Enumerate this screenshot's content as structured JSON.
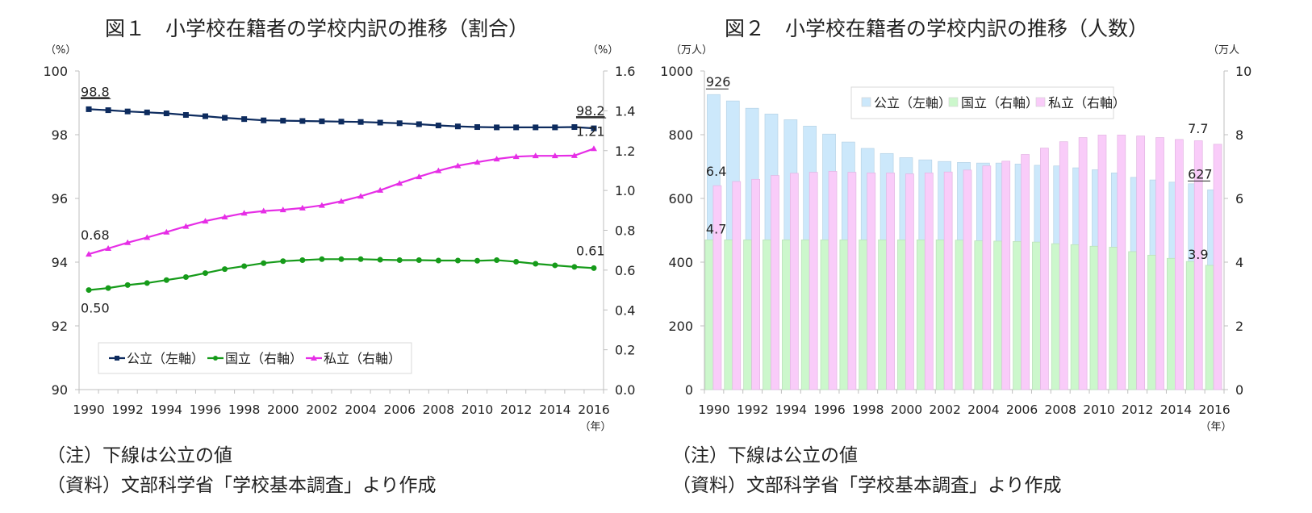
{
  "chart_data": [
    {
      "type": "line",
      "title": "図１　小学校在籍者の学校内訳の推移（割合）",
      "xlabel": "（年）",
      "ylabel": "（%）",
      "y2label": "（%）",
      "ylim": [
        90,
        100
      ],
      "y2lim": [
        0.0,
        1.6
      ],
      "yticks": [
        "90",
        "92",
        "94",
        "96",
        "98",
        "100"
      ],
      "y2ticks": [
        "0.0",
        "0.2",
        "0.4",
        "0.6",
        "0.8",
        "1.0",
        "1.2",
        "1.4",
        "1.6"
      ],
      "x": [
        1990,
        1991,
        1992,
        1993,
        1994,
        1995,
        1996,
        1997,
        1998,
        1999,
        2000,
        2001,
        2002,
        2003,
        2004,
        2005,
        2006,
        2007,
        2008,
        2009,
        2010,
        2011,
        2012,
        2013,
        2014,
        2015,
        2016
      ],
      "xticks": [
        "1990",
        "1992",
        "1994",
        "1996",
        "1998",
        "2000",
        "2002",
        "2004",
        "2006",
        "2008",
        "2010",
        "2012",
        "2014",
        "2016"
      ],
      "grid": false,
      "legend_position": "bottom-left",
      "series": [
        {
          "name": "公立（左軸）",
          "axis": "left",
          "color": "#0d2b5e",
          "marker": "square",
          "values": [
            98.8,
            98.77,
            98.73,
            98.7,
            98.67,
            98.62,
            98.58,
            98.53,
            98.49,
            98.45,
            98.44,
            98.43,
            98.42,
            98.41,
            98.4,
            98.38,
            98.36,
            98.33,
            98.29,
            98.26,
            98.24,
            98.23,
            98.23,
            98.23,
            98.23,
            98.24,
            98.2
          ]
        },
        {
          "name": "国立（右軸）",
          "axis": "right",
          "color": "#169b1a",
          "marker": "circle",
          "values": [
            0.5,
            0.51,
            0.525,
            0.535,
            0.55,
            0.565,
            0.585,
            0.605,
            0.62,
            0.635,
            0.645,
            0.65,
            0.655,
            0.655,
            0.655,
            0.652,
            0.65,
            0.65,
            0.648,
            0.648,
            0.647,
            0.65,
            0.642,
            0.632,
            0.624,
            0.616,
            0.61
          ]
        },
        {
          "name": "私立（右軸）",
          "axis": "right",
          "color": "#e62ee6",
          "marker": "triangle",
          "values": [
            0.68,
            0.709,
            0.738,
            0.764,
            0.791,
            0.82,
            0.846,
            0.867,
            0.886,
            0.897,
            0.903,
            0.912,
            0.925,
            0.946,
            0.971,
            1.001,
            1.036,
            1.069,
            1.099,
            1.124,
            1.142,
            1.158,
            1.17,
            1.174,
            1.174,
            1.175,
            1.21
          ]
        }
      ],
      "annotations": [
        {
          "series": 0,
          "index": 0,
          "text": "98.8",
          "underline": true
        },
        {
          "series": 0,
          "index": 26,
          "text": "98.2",
          "underline": true
        },
        {
          "series": 2,
          "index": 0,
          "text": "0.68"
        },
        {
          "series": 2,
          "index": 26,
          "text": "1.21"
        },
        {
          "series": 1,
          "index": 0,
          "text": "0.50"
        },
        {
          "series": 1,
          "index": 26,
          "text": "0.61"
        }
      ]
    },
    {
      "type": "bar",
      "title": "図２　小学校在籍者の学校内訳の推移（人数）",
      "xlabel": "（年）",
      "ylabel": "（万人）",
      "y2label": "（万人",
      "ylim": [
        0,
        1000
      ],
      "y2lim": [
        0,
        10
      ],
      "yticks": [
        "0",
        "200",
        "400",
        "600",
        "800",
        "1000"
      ],
      "y2ticks": [
        "0",
        "2",
        "4",
        "6",
        "8",
        "10"
      ],
      "x": [
        1990,
        1991,
        1992,
        1993,
        1994,
        1995,
        1996,
        1997,
        1998,
        1999,
        2000,
        2001,
        2002,
        2003,
        2004,
        2005,
        2006,
        2007,
        2008,
        2009,
        2010,
        2011,
        2012,
        2013,
        2014,
        2015,
        2016
      ],
      "xticks": [
        "1990",
        "1992",
        "1994",
        "1996",
        "1998",
        "2000",
        "2002",
        "2004",
        "2006",
        "2008",
        "2010",
        "2012",
        "2014",
        "2016"
      ],
      "grid": false,
      "legend_position": "top-right",
      "series": [
        {
          "name": "公立（左軸）",
          "axis": "left",
          "color": "#cce8fb",
          "values": [
            926,
            906,
            883,
            865,
            847,
            827,
            802,
            777,
            757,
            741,
            728,
            721,
            716,
            713,
            711,
            711,
            708,
            704,
            702,
            696,
            690,
            680,
            666,
            658,
            651,
            646,
            627
          ]
        },
        {
          "name": "国立（右軸）",
          "axis": "right",
          "color": "#ccf7cc",
          "values": [
            4.7,
            4.7,
            4.7,
            4.7,
            4.7,
            4.7,
            4.7,
            4.7,
            4.7,
            4.7,
            4.7,
            4.7,
            4.7,
            4.69,
            4.67,
            4.66,
            4.65,
            4.63,
            4.58,
            4.55,
            4.5,
            4.47,
            4.33,
            4.22,
            4.12,
            4.02,
            3.9
          ]
        },
        {
          "name": "私立（右軸）",
          "axis": "right",
          "color": "#f9ccf9",
          "values": [
            6.4,
            6.53,
            6.6,
            6.72,
            6.79,
            6.82,
            6.85,
            6.82,
            6.8,
            6.8,
            6.77,
            6.8,
            6.83,
            6.89,
            7.02,
            7.17,
            7.38,
            7.58,
            7.78,
            7.91,
            7.99,
            7.99,
            7.96,
            7.91,
            7.85,
            7.81,
            7.7
          ]
        }
      ],
      "annotations": [
        {
          "series": 0,
          "index": 0,
          "text": "926",
          "underline": true
        },
        {
          "series": 0,
          "index": 26,
          "text": "627",
          "underline": true
        },
        {
          "series": 2,
          "index": 0,
          "text": "6.4"
        },
        {
          "series": 2,
          "index": 26,
          "text": "7.7"
        },
        {
          "series": 1,
          "index": 0,
          "text": "4.7"
        },
        {
          "series": 1,
          "index": 26,
          "text": "3.9"
        }
      ]
    }
  ],
  "notes": {
    "fig1_note": "（注）下線は公立の値",
    "fig1_source": "（資料）文部科学省「学校基本調査」より作成",
    "fig2_note": "（注）下線は公立の値",
    "fig2_source": "（資料）文部科学省「学校基本調査」より作成"
  }
}
